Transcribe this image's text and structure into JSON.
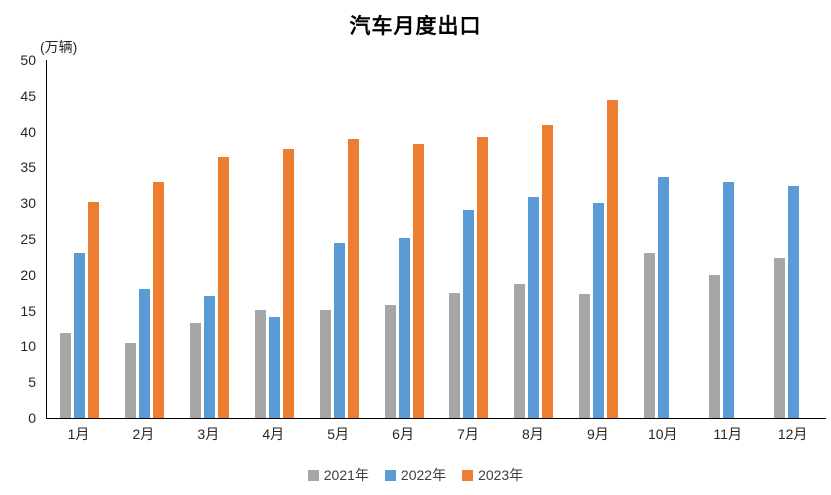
{
  "title": "汽车月度出口",
  "y_axis_unit": "(万辆)",
  "colors": {
    "series_2021": "#A6A6A6",
    "series_2022": "#5B9BD5",
    "series_2023": "#ED7D31",
    "axis": "#000000",
    "text": "#262626"
  },
  "chart_data": {
    "type": "bar",
    "title": "汽车月度出口",
    "xlabel": "",
    "ylabel": "(万辆)",
    "categories": [
      "1月",
      "2月",
      "3月",
      "4月",
      "5月",
      "6月",
      "7月",
      "8月",
      "9月",
      "10月",
      "11月",
      "12月"
    ],
    "series": [
      {
        "name": "2021年",
        "color": "#A6A6A6",
        "values": [
          11.9,
          10.5,
          13.3,
          15.1,
          15.1,
          15.8,
          17.4,
          18.7,
          17.3,
          23.1,
          20.0,
          22.4
        ]
      },
      {
        "name": "2022年",
        "color": "#5B9BD5",
        "values": [
          23.1,
          18.0,
          17.1,
          14.1,
          24.5,
          25.1,
          29.0,
          30.9,
          30.0,
          33.7,
          33.0,
          32.4
        ]
      },
      {
        "name": "2023年",
        "color": "#ED7D31",
        "values": [
          30.2,
          33.0,
          36.4,
          37.6,
          38.9,
          38.3,
          39.2,
          40.9,
          44.4,
          null,
          null,
          null
        ]
      }
    ],
    "ylim": [
      0,
      50
    ],
    "ytick_step": 5,
    "grid": false,
    "legend_position": "bottom",
    "legend_labels": [
      "2021年",
      "2022年",
      "2023年"
    ]
  }
}
